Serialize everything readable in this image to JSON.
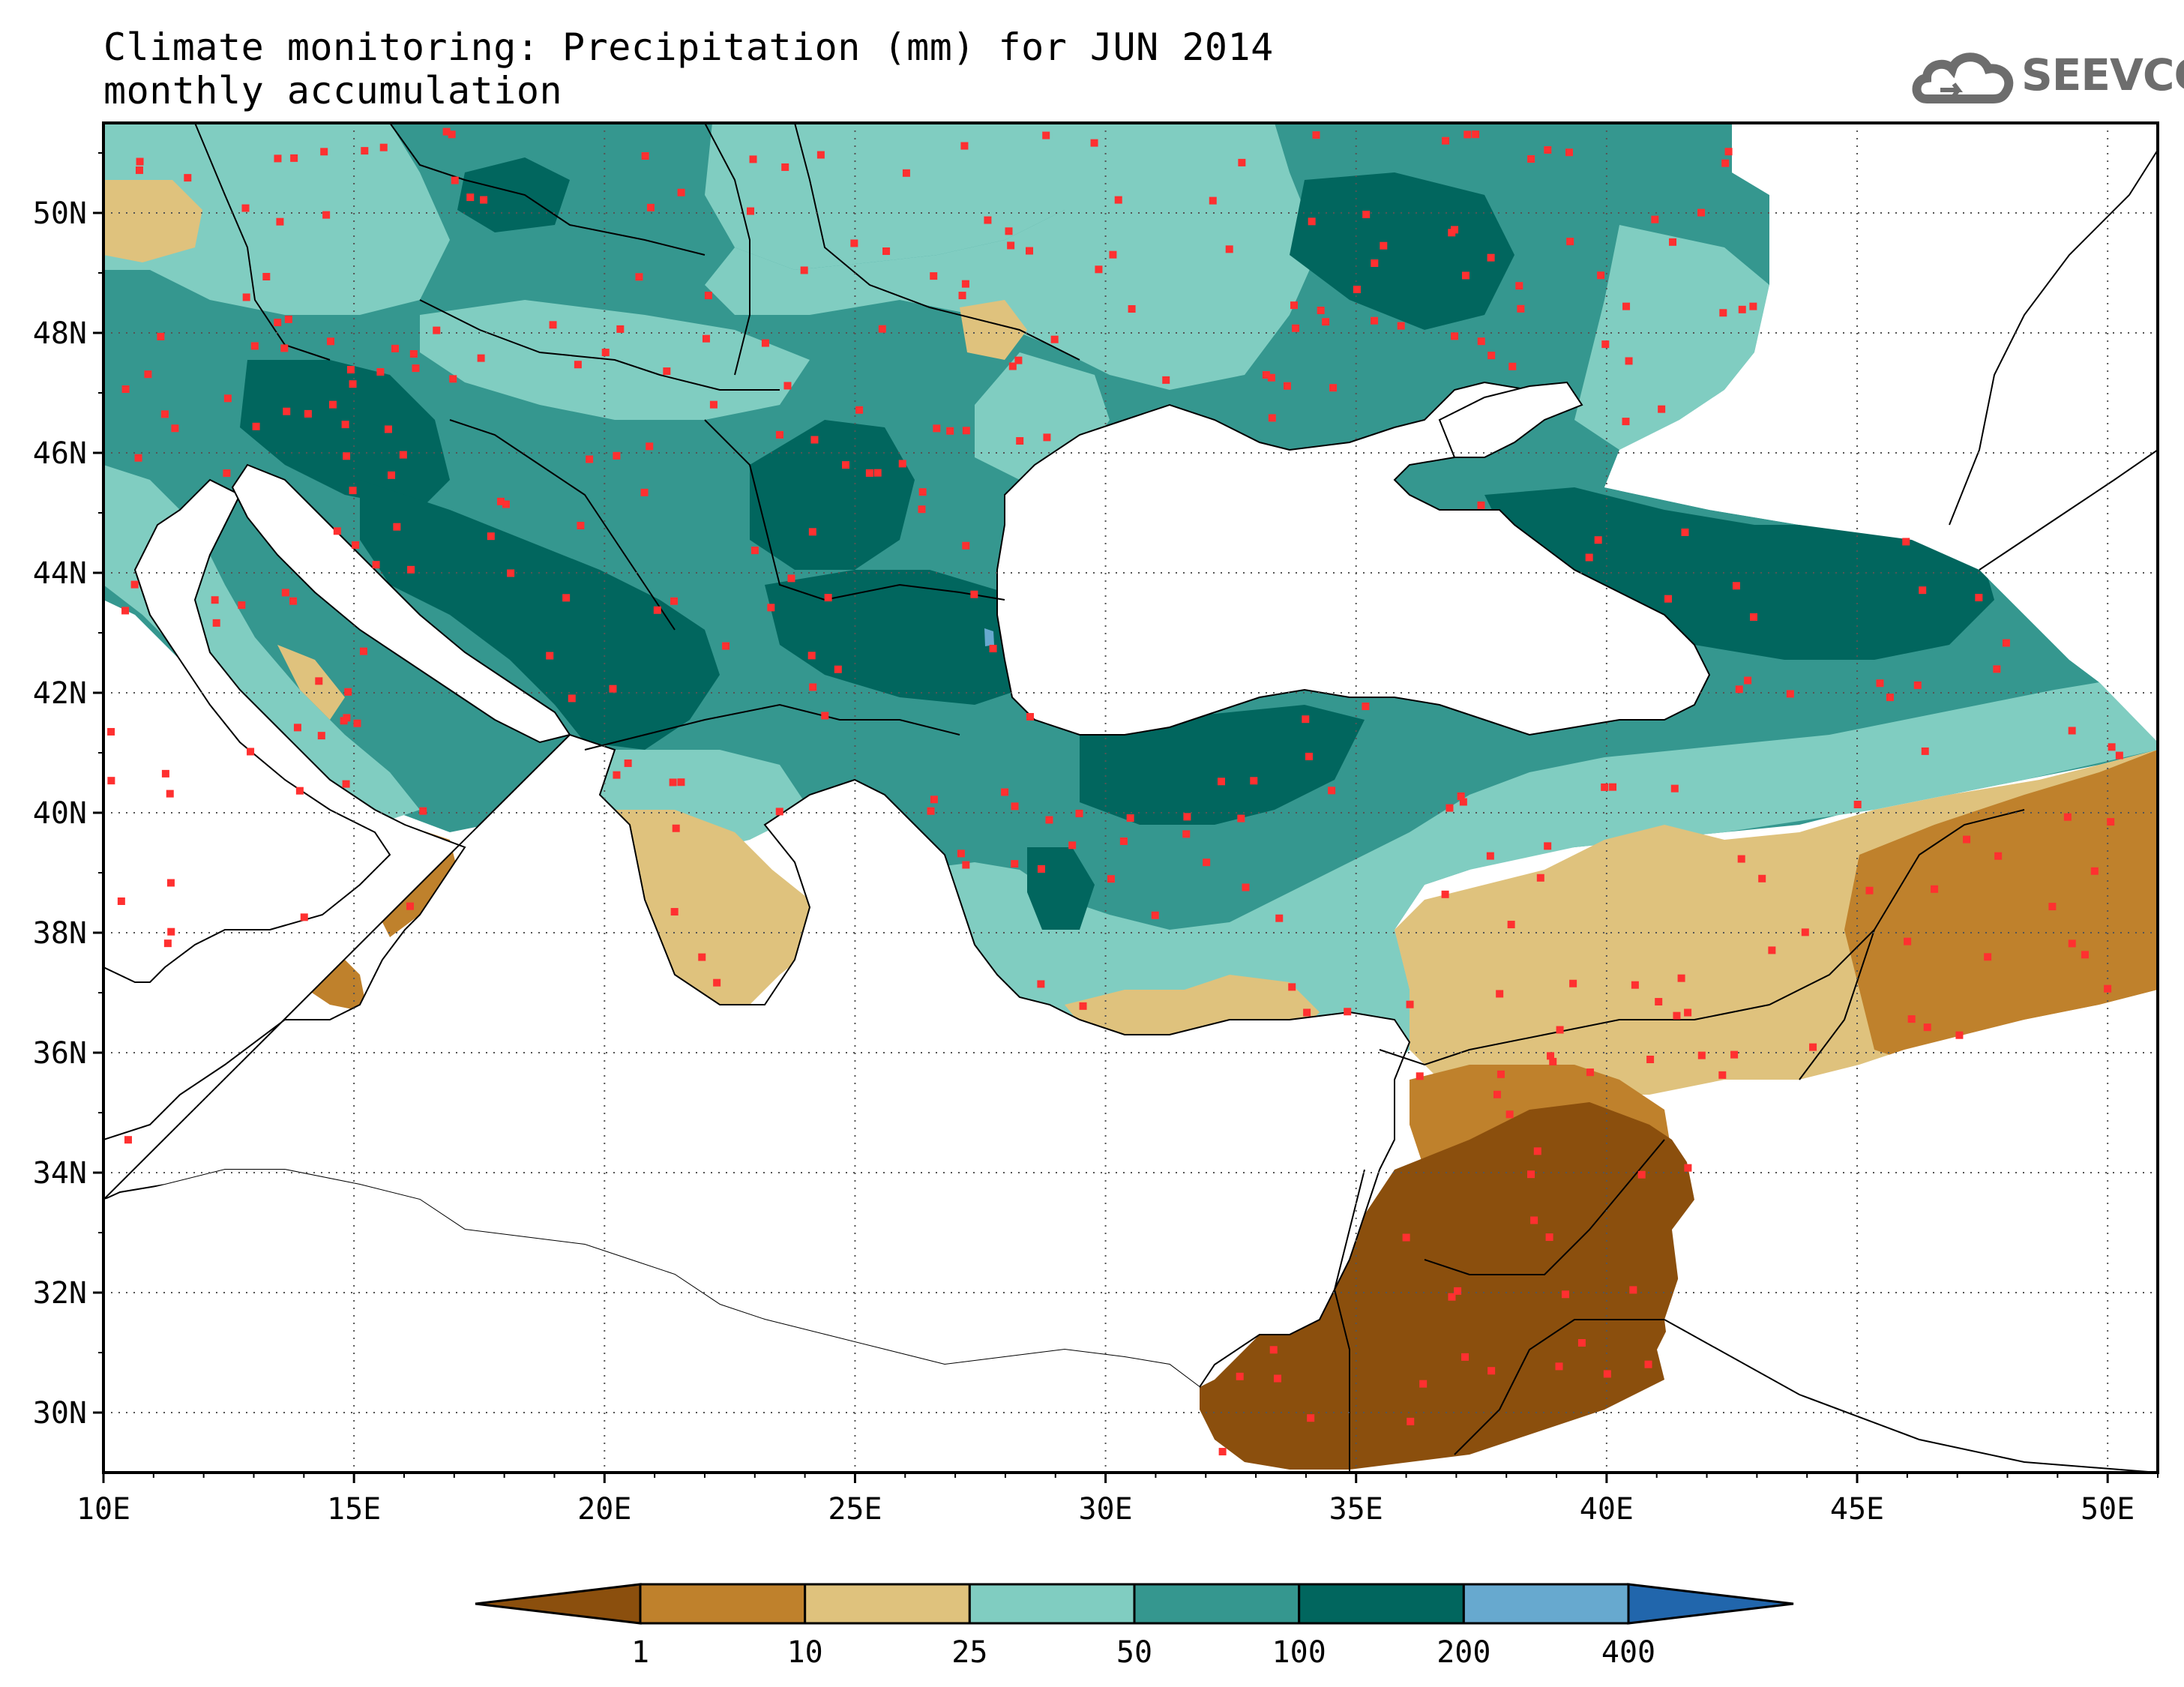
{
  "title": {
    "line1": "Climate monitoring: Precipitation (mm) for JUN 2014",
    "line2": "monthly accumulation"
  },
  "logo": {
    "text": "SEEVCCC",
    "icon": "cloud-icon"
  },
  "map": {
    "lon_range": [
      10,
      51
    ],
    "lat_range": [
      29,
      51.5
    ],
    "x_ticks": [
      "10E",
      "15E",
      "20E",
      "25E",
      "30E",
      "35E",
      "40E",
      "45E",
      "50E"
    ],
    "y_ticks": [
      "30N",
      "32N",
      "34N",
      "36N",
      "38N",
      "40N",
      "42N",
      "44N",
      "46N",
      "48N",
      "50N"
    ],
    "gridlines": "dotted"
  },
  "legend": {
    "breaks": [
      "1",
      "10",
      "25",
      "50",
      "100",
      "200",
      "400"
    ],
    "colors": [
      "#8b4f0d",
      "#bf812c",
      "#dfc27d",
      "#80cdc1",
      "#35978f",
      "#01665e",
      "#67a9cf",
      "#2166ac"
    ],
    "extends": "both"
  },
  "colors": {
    "station_marker": "#ff3030",
    "coastline": "#000000",
    "sea": "#ffffff"
  }
}
